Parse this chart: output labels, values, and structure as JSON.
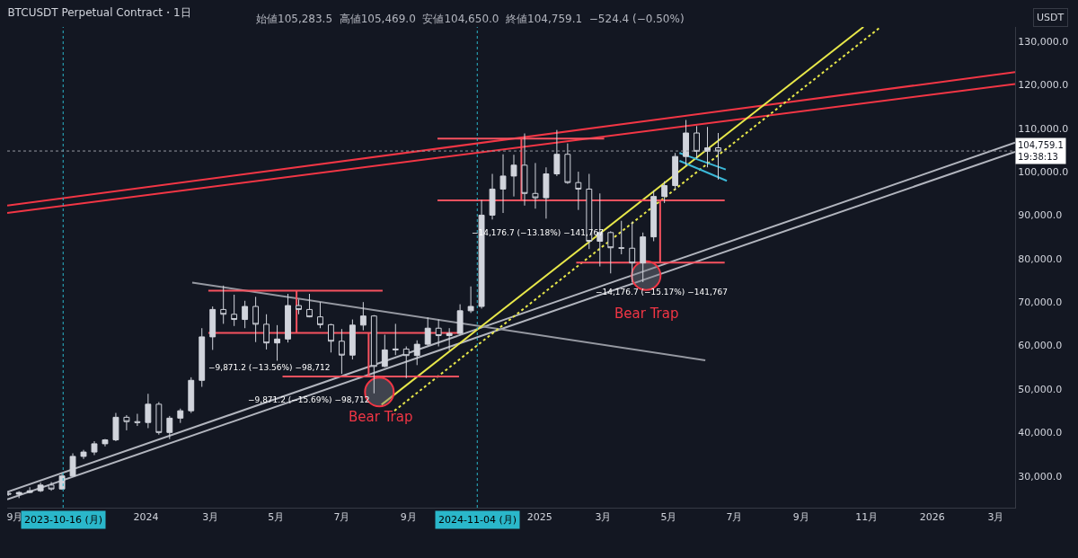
{
  "chart_data": {
    "type": "candlestick",
    "title": "BTCUSDT Perpetual Contract・1日",
    "subtitle": "始値105,283.5  高値105,469.0  安値104,650.0  終値104,759.1  −524.4 (−0.50%)",
    "ylabel": "USDT",
    "xlim": [
      "2023-08-25",
      "2026-03-19"
    ],
    "ylim": [
      22700,
      133300
    ],
    "xticks": [
      {
        "value": "2023-09-01",
        "label": "9月"
      },
      {
        "value": "2024-01-01",
        "label": "2024"
      },
      {
        "value": "2024-03-01",
        "label": "3月"
      },
      {
        "value": "2024-05-01",
        "label": "5月"
      },
      {
        "value": "2024-07-01",
        "label": "7月"
      },
      {
        "value": "2024-09-01",
        "label": "9月"
      },
      {
        "value": "2025-01-01",
        "label": "2025"
      },
      {
        "value": "2025-03-01",
        "label": "3月"
      },
      {
        "value": "2025-05-01",
        "label": "5月"
      },
      {
        "value": "2025-07-01",
        "label": "7月"
      },
      {
        "value": "2025-09-01",
        "label": "9月"
      },
      {
        "value": "2025-11-01",
        "label": "11月"
      },
      {
        "value": "2026-01-01",
        "label": "2026"
      },
      {
        "value": "2026-03-01",
        "label": "3月"
      }
    ],
    "yticks": [
      {
        "value": 30000,
        "label": "30,000.0"
      },
      {
        "value": 40000,
        "label": "40,000.0"
      },
      {
        "value": 50000,
        "label": "50,000.0"
      },
      {
        "value": 60000,
        "label": "60,000.0"
      },
      {
        "value": 70000,
        "label": "70,000.0"
      },
      {
        "value": 80000,
        "label": "80,000.0"
      },
      {
        "value": 90000,
        "label": "90,000.0"
      },
      {
        "value": 100000,
        "label": "100,000.0"
      },
      {
        "value": 110000,
        "label": "110,000.0"
      },
      {
        "value": 120000,
        "label": "120,000.0"
      },
      {
        "value": 130000,
        "label": "130,000.0"
      }
    ],
    "grid": false,
    "series": [
      {
        "type": "line",
        "color": "#f23645",
        "x": [
          "2023-08-25",
          "2026-03-19"
        ],
        "values": [
          92200,
          122900
        ]
      },
      {
        "type": "line",
        "color": "#f23645",
        "x": [
          "2023-08-25",
          "2026-03-19"
        ],
        "values": [
          90500,
          120200
        ]
      },
      {
        "type": "line",
        "color": "#b2b5be",
        "x": [
          "2023-08-25",
          "2026-03-19"
        ],
        "values": [
          26300,
          106700
        ]
      },
      {
        "type": "line",
        "color": "#b2b5be",
        "x": [
          "2023-08-25",
          "2026-03-19"
        ],
        "values": [
          24600,
          104600
        ]
      },
      {
        "type": "line",
        "color": "#9598a1",
        "x": [
          "2024-02-13",
          "2025-06-04"
        ],
        "values": [
          74500,
          56600
        ]
      },
      {
        "type": "line",
        "color": "#e8e84a",
        "x": [
          "2024-08-07",
          "2025-10-29"
        ],
        "values": [
          46400,
          133300
        ]
      },
      {
        "type": "line",
        "color": "#e8e84a",
        "line_style": "dotted",
        "x": [
          "2024-08-19",
          "2025-11-14"
        ],
        "values": [
          45000,
          133300
        ]
      },
      {
        "type": "line",
        "color": "#3bb9d8",
        "x": [
          "2025-05-11",
          "2025-06-23"
        ],
        "values": [
          104300,
          100500
        ]
      },
      {
        "type": "line",
        "color": "#3bb9d8",
        "x": [
          "2025-05-11",
          "2025-06-24"
        ],
        "values": [
          102500,
          97900
        ]
      },
      {
        "type": "line",
        "color": "#f7525f",
        "x": [
          "2024-02-28",
          "2024-08-08"
        ],
        "values": [
          72600,
          72600
        ]
      },
      {
        "type": "line",
        "color": "#f7525f",
        "x": [
          "2024-02-28",
          "2024-10-18"
        ],
        "values": [
          62900,
          62900
        ]
      },
      {
        "type": "line",
        "color": "#f7525f",
        "x": [
          "2024-05-07",
          "2024-10-18"
        ],
        "values": [
          52900,
          52900
        ]
      },
      {
        "type": "line",
        "color": "#f7525f",
        "x": [
          "2024-09-28",
          "2025-03-02"
        ],
        "values": [
          107600,
          107600
        ]
      },
      {
        "type": "line",
        "color": "#f7525f",
        "x": [
          "2024-09-28",
          "2025-06-22"
        ],
        "values": [
          93400,
          93400
        ]
      },
      {
        "type": "line",
        "color": "#f7525f",
        "x": [
          "2025-02-04",
          "2025-06-22"
        ],
        "values": [
          79100,
          79100
        ]
      },
      {
        "type": "line",
        "color": "#f7525f",
        "x": [
          "2024-05-20",
          "2024-05-20"
        ],
        "values": [
          72600,
          62900
        ]
      },
      {
        "type": "line",
        "color": "#f7525f",
        "x": [
          "2024-07-26",
          "2024-07-26"
        ],
        "values": [
          62900,
          52900
        ]
      },
      {
        "type": "line",
        "color": "#f7525f",
        "x": [
          "2024-12-15",
          "2024-12-15"
        ],
        "values": [
          107600,
          93400
        ]
      },
      {
        "type": "line",
        "color": "#f7525f",
        "x": [
          "2025-04-23",
          "2025-04-23"
        ],
        "values": [
          93400,
          79100
        ]
      },
      {
        "color": "#d1d4dc",
        "x": [
          "2023-08-26",
          "2023-09-05",
          "2023-09-15",
          "2023-09-25",
          "2023-10-05",
          "2023-10-15",
          "2023-10-25",
          "2023-11-04",
          "2023-11-14",
          "2023-11-24",
          "2023-12-04",
          "2023-12-14",
          "2023-12-24",
          "2024-01-03",
          "2024-01-13",
          "2024-01-23",
          "2024-02-02",
          "2024-02-12",
          "2024-02-22",
          "2024-03-03",
          "2024-03-13",
          "2024-03-23",
          "2024-04-02",
          "2024-04-12",
          "2024-04-22",
          "2024-05-02",
          "2024-05-12",
          "2024-05-22",
          "2024-06-01",
          "2024-06-11",
          "2024-06-21",
          "2024-07-01",
          "2024-07-11",
          "2024-07-21",
          "2024-07-31",
          "2024-08-10",
          "2024-08-20",
          "2024-08-30",
          "2024-09-09",
          "2024-09-19",
          "2024-09-29",
          "2024-10-09",
          "2024-10-19",
          "2024-10-29",
          "2024-11-08",
          "2024-11-18",
          "2024-11-28",
          "2024-12-08",
          "2024-12-18",
          "2024-12-28",
          "2025-01-07",
          "2025-01-17",
          "2025-01-27",
          "2025-02-06",
          "2025-02-16",
          "2025-02-26",
          "2025-03-08",
          "2025-03-18",
          "2025-03-28",
          "2025-04-07",
          "2025-04-17",
          "2025-04-27",
          "2025-05-07",
          "2025-05-17",
          "2025-05-27",
          "2025-06-06",
          "2025-06-16"
        ],
        "ohlc": [
          [
            26000,
            26200,
            25400,
            25800
          ],
          [
            25800,
            26500,
            24900,
            26200
          ],
          [
            26200,
            27400,
            26000,
            26600
          ],
          [
            26600,
            28500,
            26300,
            27900
          ],
          [
            27900,
            28600,
            26600,
            27000
          ],
          [
            27000,
            30500,
            26800,
            30000
          ],
          [
            30000,
            35200,
            29800,
            34500
          ],
          [
            34500,
            36000,
            33900,
            35500
          ],
          [
            35500,
            38000,
            34800,
            37400
          ],
          [
            37400,
            38500,
            36800,
            38300
          ],
          [
            38300,
            44500,
            38000,
            43500
          ],
          [
            43500,
            44000,
            40500,
            42500
          ],
          [
            42500,
            44300,
            41500,
            42300
          ],
          [
            42300,
            48900,
            41000,
            46500
          ],
          [
            46500,
            47000,
            39500,
            40000
          ],
          [
            40000,
            43800,
            38500,
            43300
          ],
          [
            43300,
            45500,
            42200,
            45000
          ],
          [
            45000,
            52700,
            44500,
            52000
          ],
          [
            52000,
            64000,
            50500,
            62000
          ],
          [
            62000,
            69000,
            59000,
            68300
          ],
          [
            68300,
            73800,
            65000,
            67200
          ],
          [
            67200,
            71700,
            64500,
            66000
          ],
          [
            66000,
            70300,
            64000,
            69000
          ],
          [
            69000,
            71200,
            60800,
            64900
          ],
          [
            64900,
            67200,
            59100,
            60600
          ],
          [
            60600,
            64700,
            56500,
            61500
          ],
          [
            61500,
            71900,
            60700,
            69200
          ],
          [
            69200,
            70600,
            67200,
            68300
          ],
          [
            68300,
            71900,
            66500,
            66600
          ],
          [
            66600,
            70000,
            64000,
            64800
          ],
          [
            64800,
            65000,
            58400,
            61000
          ],
          [
            61000,
            63800,
            53500,
            57800
          ],
          [
            57800,
            66000,
            56800,
            64700
          ],
          [
            64700,
            70000,
            63500,
            66800
          ],
          [
            66800,
            67000,
            49000,
            55200
          ],
          [
            55200,
            62500,
            55000,
            59000
          ],
          [
            59000,
            65000,
            57800,
            59200
          ],
          [
            59200,
            59800,
            52500,
            57700
          ],
          [
            57700,
            61200,
            55500,
            60300
          ],
          [
            60300,
            66500,
            60000,
            64000
          ],
          [
            64000,
            66000,
            59800,
            62300
          ],
          [
            62300,
            64000,
            58900,
            62800
          ],
          [
            62800,
            69500,
            62500,
            68000
          ],
          [
            68000,
            73600,
            67500,
            69000
          ],
          [
            69000,
            93500,
            68500,
            90000
          ],
          [
            90000,
            99500,
            89000,
            96000
          ],
          [
            96000,
            104000,
            90500,
            99000
          ],
          [
            99000,
            103900,
            94300,
            101500
          ],
          [
            101500,
            108800,
            92200,
            95000
          ],
          [
            95000,
            102000,
            91500,
            94000
          ],
          [
            94000,
            101000,
            89200,
            99500
          ],
          [
            99500,
            109600,
            99000,
            104000
          ],
          [
            104000,
            106500,
            97200,
            97500
          ],
          [
            97500,
            100000,
            91200,
            96000
          ],
          [
            96000,
            99500,
            82200,
            84000
          ],
          [
            84000,
            95000,
            78200,
            86000
          ],
          [
            86000,
            86300,
            76600,
            82500
          ],
          [
            82500,
            88700,
            81000,
            82400
          ],
          [
            82400,
            88500,
            74500,
            79000
          ],
          [
            79000,
            86000,
            74600,
            85000
          ],
          [
            85000,
            95700,
            84000,
            94300
          ],
          [
            94300,
            97800,
            92800,
            96800
          ],
          [
            96800,
            104300,
            95800,
            103500
          ],
          [
            103500,
            111900,
            101500,
            108900
          ],
          [
            108900,
            110500,
            103000,
            104700
          ],
          [
            104700,
            110300,
            101000,
            105500
          ],
          [
            105500,
            108900,
            98200,
            104759.1
          ]
        ]
      },
      {
        "type": "scatter",
        "color": "#f23645",
        "marker": "circle",
        "x": [
          "2024-08-05",
          "2025-04-10"
        ],
        "values": [
          49300,
          76100
        ]
      }
    ],
    "ref_lines": [
      {
        "axis": "x",
        "value": "2023-10-16",
        "label": "2023-10-16 (月)",
        "color": "#2ab7ca",
        "line_style": "dotted"
      },
      {
        "axis": "x",
        "value": "2024-11-04",
        "label": "2024-11-04 (月)",
        "color": "#2ab7ca",
        "line_style": "dotted"
      },
      {
        "axis": "y",
        "value": 104759.1,
        "label": "104,759.1\n19:38:13",
        "color": "#9598a1",
        "line_style": "dotted"
      }
    ],
    "annotations": [
      "−9,871.2 (−13.56%) −98,712",
      "−9,871.2 (−15.69%) −98,712",
      "−14,176.7 (−13.18%) −141,767",
      "−14,176.7 (−15.17%) −141,767",
      "Bear Trap",
      "Bear Trap"
    ]
  }
}
